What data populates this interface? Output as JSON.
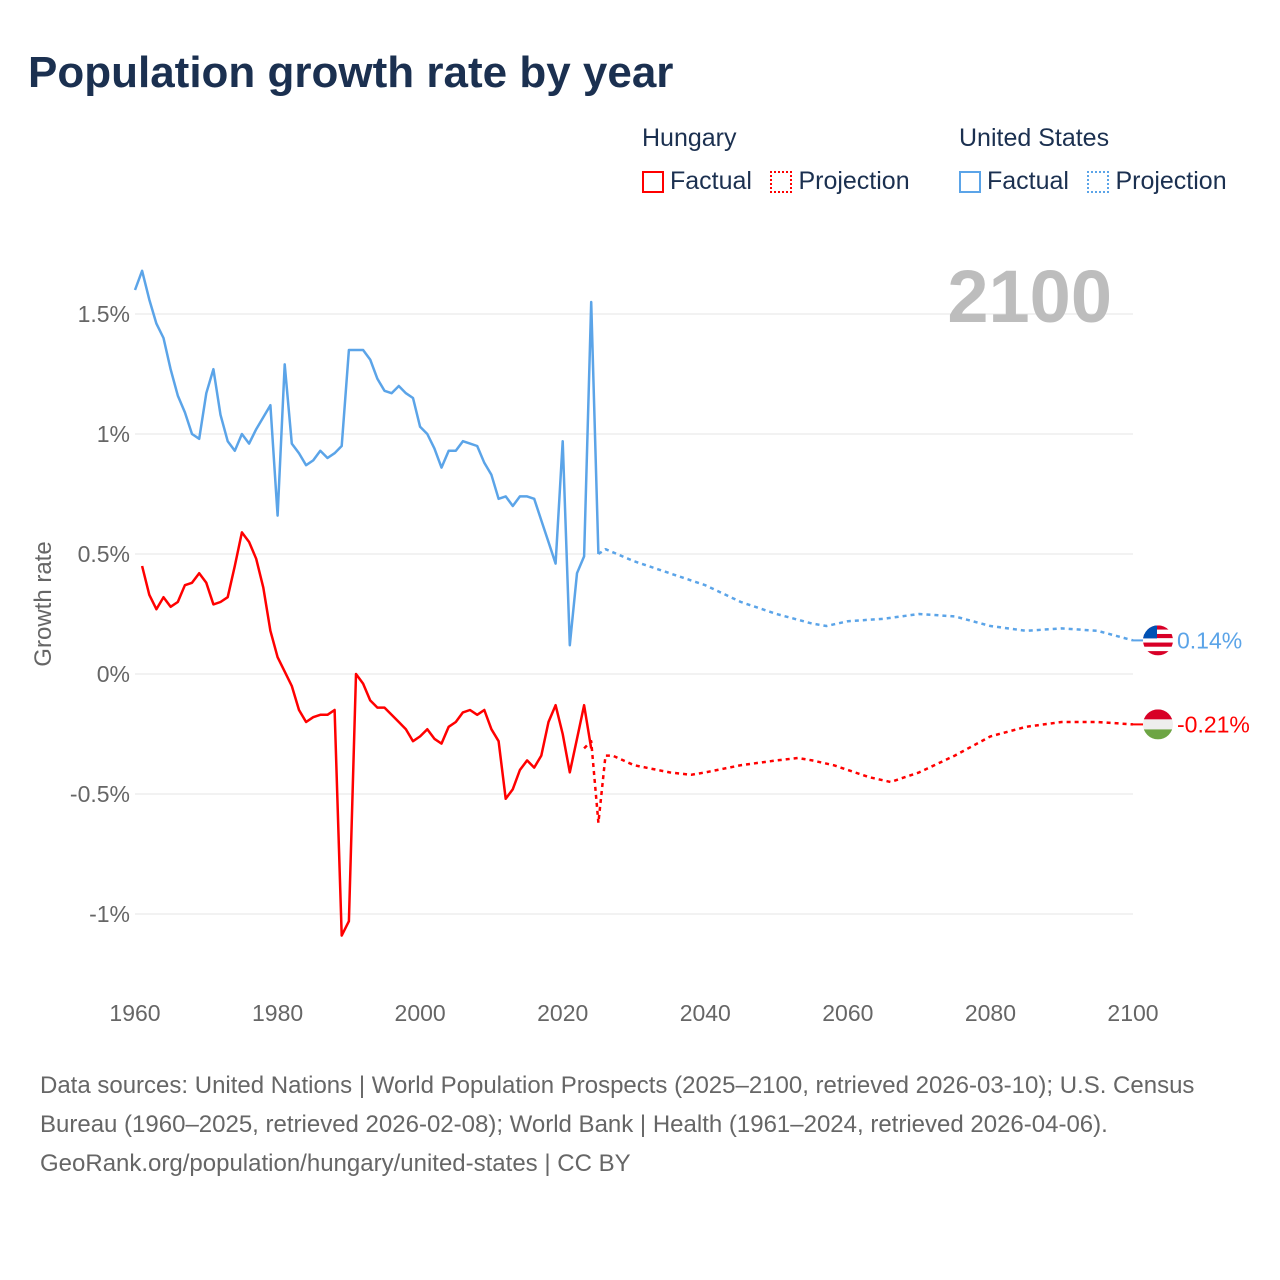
{
  "title": "Population growth rate by year",
  "legend": {
    "groups": [
      {
        "name": "Hungary",
        "color": "#ff0000",
        "factual_label": "Factual",
        "projection_label": "Projection"
      },
      {
        "name": "United States",
        "color": "#5ba4e8",
        "factual_label": "Factual",
        "projection_label": "Projection"
      }
    ]
  },
  "chart_data": {
    "type": "line",
    "title": "Population growth rate by year",
    "xlabel": "",
    "ylabel": "Growth rate",
    "xlim": [
      1960,
      2100
    ],
    "ylim": [
      -1.25,
      1.75
    ],
    "x_ticks": [
      "1960",
      "1980",
      "2000",
      "2020",
      "2040",
      "2060",
      "2080",
      "2100"
    ],
    "y_ticks": [
      {
        "v": 1.5,
        "label": "1.5%"
      },
      {
        "v": 1,
        "label": "1%"
      },
      {
        "v": 0.5,
        "label": "0.5%"
      },
      {
        "v": 0,
        "label": "0%"
      },
      {
        "v": -0.5,
        "label": "-0.5%"
      },
      {
        "v": -1,
        "label": "-1%"
      }
    ],
    "grid": true,
    "year_watermark": "2100",
    "series": [
      {
        "name": "United States",
        "type": "factual",
        "color": "#5ba4e8",
        "start_year": 1960,
        "values": [
          1.6,
          1.68,
          1.56,
          1.46,
          1.4,
          1.27,
          1.16,
          1.09,
          1.0,
          0.98,
          1.17,
          1.27,
          1.08,
          0.97,
          0.93,
          1.0,
          0.96,
          1.02,
          1.07,
          1.12,
          0.66,
          1.29,
          0.96,
          0.92,
          0.87,
          0.89,
          0.93,
          0.9,
          0.92,
          0.95,
          1.35,
          1.35,
          1.35,
          1.31,
          1.23,
          1.18,
          1.17,
          1.2,
          1.17,
          1.15,
          1.03,
          1.0,
          0.94,
          0.86,
          0.93,
          0.93,
          0.97,
          0.96,
          0.95,
          0.88,
          0.83,
          0.73,
          0.74,
          0.7,
          0.74,
          0.74,
          0.73,
          0.64,
          0.55,
          0.46,
          0.97,
          0.12,
          0.42,
          0.49,
          1.55,
          0.5
        ]
      },
      {
        "name": "United States",
        "type": "projection",
        "color": "#5ba4e8",
        "years": [
          2025,
          2026,
          2030,
          2035,
          2040,
          2045,
          2050,
          2055,
          2057,
          2060,
          2065,
          2070,
          2075,
          2080,
          2085,
          2090,
          2095,
          2100
        ],
        "values": [
          0.5,
          0.52,
          0.47,
          0.42,
          0.37,
          0.3,
          0.25,
          0.21,
          0.2,
          0.22,
          0.23,
          0.25,
          0.24,
          0.2,
          0.18,
          0.19,
          0.18,
          0.14
        ]
      },
      {
        "name": "Hungary",
        "type": "factual",
        "color": "#ff0000",
        "start_year": 1961,
        "values": [
          0.45,
          0.33,
          0.27,
          0.32,
          0.28,
          0.3,
          0.37,
          0.38,
          0.42,
          0.38,
          0.29,
          0.3,
          0.32,
          0.45,
          0.59,
          0.55,
          0.48,
          0.36,
          0.18,
          0.07,
          0.01,
          -0.05,
          -0.15,
          -0.2,
          -0.18,
          -0.17,
          -0.17,
          -0.15,
          -1.09,
          -1.03,
          0.0,
          -0.04,
          -0.11,
          -0.14,
          -0.14,
          -0.17,
          -0.2,
          -0.23,
          -0.28,
          -0.26,
          -0.23,
          -0.27,
          -0.29,
          -0.22,
          -0.2,
          -0.16,
          -0.15,
          -0.17,
          -0.15,
          -0.23,
          -0.28,
          -0.52,
          -0.48,
          -0.4,
          -0.36,
          -0.39,
          -0.34,
          -0.2,
          -0.13,
          -0.25,
          -0.41,
          -0.27,
          -0.13,
          -0.31
        ]
      },
      {
        "name": "Hungary",
        "type": "projection",
        "color": "#ff0000",
        "years": [
          2023,
          2024,
          2025,
          2026,
          2027,
          2030,
          2035,
          2038,
          2040,
          2045,
          2050,
          2053,
          2055,
          2058,
          2060,
          2063,
          2066,
          2070,
          2075,
          2080,
          2085,
          2090,
          2095,
          2100
        ],
        "values": [
          -0.31,
          -0.28,
          -0.62,
          -0.34,
          -0.34,
          -0.38,
          -0.41,
          -0.42,
          -0.41,
          -0.38,
          -0.36,
          -0.35,
          -0.36,
          -0.38,
          -0.4,
          -0.43,
          -0.45,
          -0.41,
          -0.34,
          -0.26,
          -0.22,
          -0.2,
          -0.2,
          -0.21
        ]
      }
    ],
    "end_labels": [
      {
        "country": "United States",
        "label": "0.14%",
        "value": 0.14,
        "color": "#5ba4e8"
      },
      {
        "country": "Hungary",
        "label": "-0.21%",
        "value": -0.21,
        "color": "#ff0000"
      }
    ]
  },
  "footer": {
    "sources": "Data sources: United Nations | World Population Prospects (2025–2100, retrieved 2026-03-10); U.S. Census Bureau (1960–2025, retrieved 2026-02-08); World Bank | Health (1961–2024, retrieved 2026-04-06).",
    "attribution": "GeoRank.org/population/hungary/united-states | CC BY"
  }
}
